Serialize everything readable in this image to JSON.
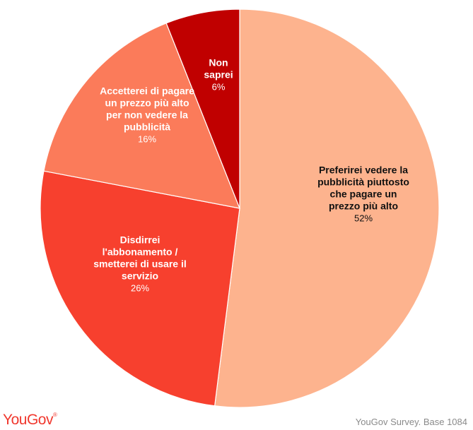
{
  "chart_data": {
    "type": "pie",
    "start_angle_deg": 0,
    "direction": "clockwise",
    "slices": [
      {
        "label_lines": [
          "Preferirei vedere la",
          "pubblicità piuttosto",
          "che pagare un",
          "prezzo più alto"
        ],
        "value": 52,
        "value_label": "52%",
        "color": "#fdb38e",
        "text_color": "#111111"
      },
      {
        "label_lines": [
          "Disdirrei",
          "l'abbonamento /",
          "smetterei di usare il",
          "servizio"
        ],
        "value": 26,
        "value_label": "26%",
        "color": "#f7402e",
        "text_color": "#ffffff"
      },
      {
        "label_lines": [
          "Accetterei di pagare",
          "un prezzo più alto",
          "per non vedere la",
          "pubblicità"
        ],
        "value": 16,
        "value_label": "16%",
        "color": "#fb7b5a",
        "text_color": "#ffffff"
      },
      {
        "label_lines": [
          "Non",
          "saprei"
        ],
        "value": 6,
        "value_label": "6%",
        "color": "#c00000",
        "text_color": "#ffffff"
      }
    ]
  },
  "footer": {
    "logo": "YouGov",
    "logo_mark": "®",
    "source": "YouGov Survey. Base 1084"
  }
}
